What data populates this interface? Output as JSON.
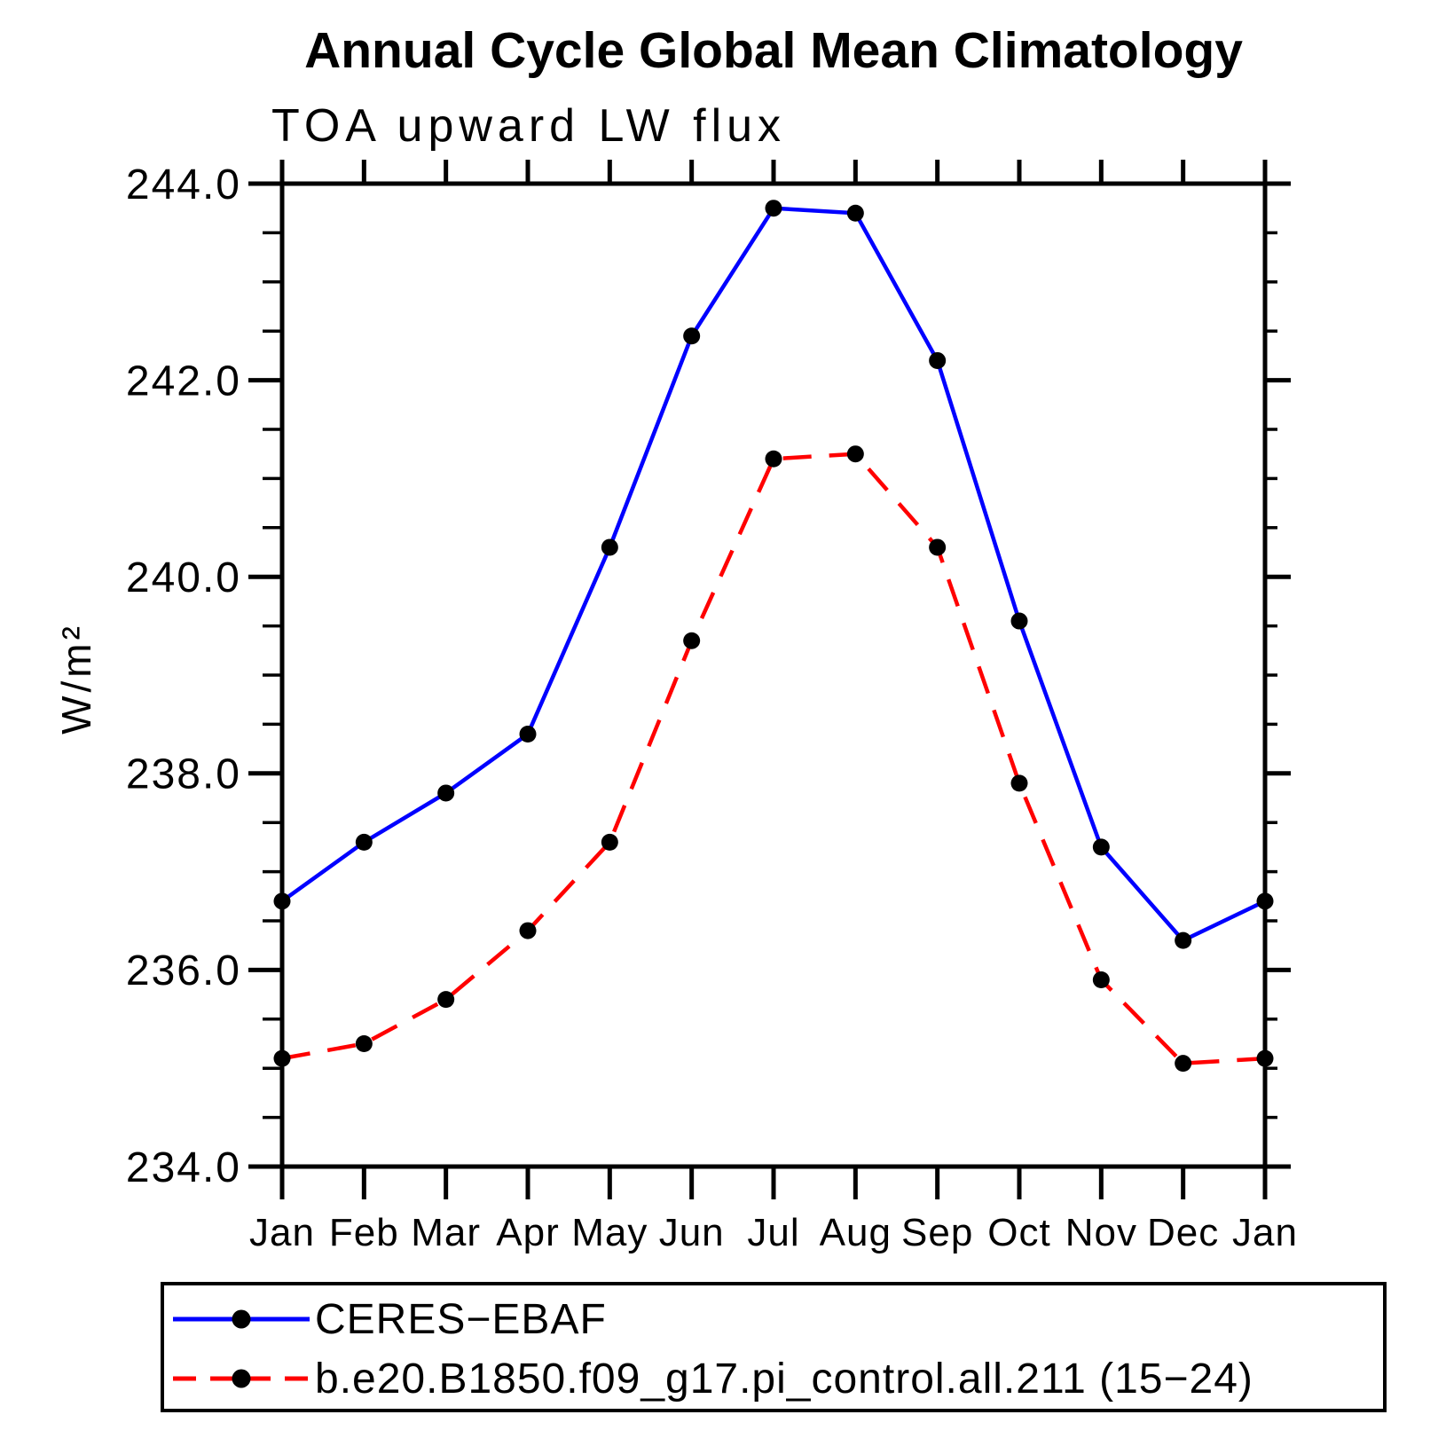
{
  "header": {
    "title": "Annual Cycle Global Mean Climatology",
    "subtitle": "TOA upward LW flux"
  },
  "chart_data": {
    "type": "line",
    "title": "Annual Cycle Global Mean Climatology",
    "subtitle": "TOA upward LW flux",
    "xlabel": "",
    "ylabel": "W/m²",
    "categories": [
      "Jan",
      "Feb",
      "Mar",
      "Apr",
      "May",
      "Jun",
      "Jul",
      "Aug",
      "Sep",
      "Oct",
      "Nov",
      "Dec",
      "Jan"
    ],
    "ylim": [
      234.0,
      244.0
    ],
    "y_major_tick_values": [
      244.0,
      242.0,
      240.0,
      238.0,
      236.0,
      234.0
    ],
    "y_tick_labels": [
      "244.0",
      "242.0",
      "240.0",
      "238.0",
      "236.0",
      "234.0"
    ],
    "y_minor_step": 0.5,
    "grid": false,
    "legend_position": "bottom",
    "axis_color": "#000000",
    "marker_color": "#000000",
    "series": [
      {
        "name": "CERES−EBAF",
        "color": "#0000ff",
        "style": "solid",
        "marker": "circle",
        "values": [
          236.7,
          237.3,
          237.8,
          238.4,
          240.3,
          242.45,
          243.75,
          243.7,
          242.2,
          239.55,
          237.25,
          236.3,
          236.7
        ]
      },
      {
        "name": "b.e20.B1850.f09_g17.pi_control.all.211 (15−24)",
        "color": "#ff0000",
        "style": "dashed",
        "marker": "circle",
        "values": [
          235.1,
          235.25,
          235.7,
          236.4,
          237.3,
          239.35,
          241.2,
          241.25,
          240.3,
          237.9,
          235.9,
          235.05,
          235.1
        ]
      }
    ]
  }
}
